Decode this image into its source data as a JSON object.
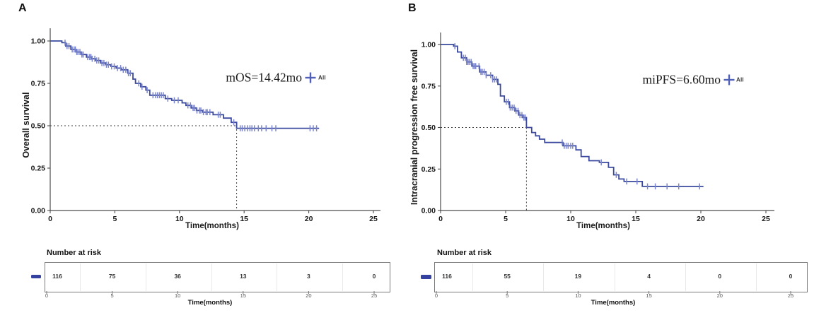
{
  "colors": {
    "line": "#3b4a9f",
    "censor": "#7b85cb",
    "axis": "#4d4d4d",
    "dashed_line": "#3f3f3f",
    "legend_plus": "#5261b8",
    "risk_marker": "#35419e",
    "risk_border": "#7a7a7a",
    "risk_grid": "#e9e9e9",
    "tick_text": "#1a1a1a",
    "muted_text": "#555555"
  },
  "chart_data": [
    {
      "type": "line",
      "subtype": "kaplan-meier-step",
      "panel": "A",
      "ylabel": "Overall survival",
      "xlabel": "Time(months)",
      "annotation": "mOS=14.42mo",
      "legend_label": "All",
      "legend_position": "inside-right of plot, next to annotation",
      "median_months": 14.42,
      "xlim": [
        0,
        25
      ],
      "ylim": [
        0.0,
        1.0
      ],
      "xticks": [
        0,
        5,
        10,
        15,
        20,
        25
      ],
      "yticks": [
        "0.00",
        "0.25",
        "0.50",
        "0.75",
        "1.00"
      ],
      "grid": false,
      "step_t": [
        0,
        0.9,
        1.2,
        1.6,
        2.0,
        2.4,
        2.8,
        3.2,
        3.5,
        3.9,
        4.3,
        4.7,
        5.1,
        5.5,
        6.0,
        6.4,
        6.6,
        7.0,
        7.4,
        7.7,
        8.9,
        9.4,
        10.2,
        10.5,
        10.9,
        11.3,
        11.8,
        12.6,
        13.4,
        14.0,
        14.42,
        20.8
      ],
      "step_s": [
        1.0,
        0.99,
        0.97,
        0.95,
        0.935,
        0.92,
        0.905,
        0.895,
        0.885,
        0.87,
        0.86,
        0.85,
        0.84,
        0.83,
        0.81,
        0.775,
        0.75,
        0.73,
        0.71,
        0.68,
        0.66,
        0.65,
        0.635,
        0.62,
        0.605,
        0.59,
        0.58,
        0.565,
        0.545,
        0.52,
        0.485,
        0.485
      ],
      "censor_t": [
        1.15,
        1.3,
        1.45,
        1.7,
        1.85,
        1.95,
        2.05,
        2.15,
        2.3,
        2.45,
        2.55,
        2.9,
        3.05,
        3.15,
        3.25,
        3.45,
        3.6,
        3.75,
        4.0,
        4.15,
        4.35,
        4.5,
        4.75,
        4.95,
        5.2,
        5.45,
        5.65,
        5.85,
        6.05,
        6.2,
        6.85,
        7.1,
        7.5,
        7.95,
        8.15,
        8.3,
        8.45,
        8.6,
        8.75,
        9.1,
        9.6,
        9.9,
        10.65,
        10.85,
        11.05,
        11.15,
        11.35,
        11.55,
        11.65,
        11.85,
        12.05,
        12.15,
        12.35,
        13.0,
        13.15,
        14.2,
        14.7,
        14.85,
        15.05,
        15.25,
        15.45,
        15.6,
        15.8,
        16.1,
        16.35,
        16.7,
        17.15,
        17.45,
        20.1,
        20.35,
        20.6
      ],
      "risk_table": {
        "title": "Number at risk",
        "xlabel": "Time(months)",
        "group": "All",
        "times": [
          0,
          5,
          10,
          15,
          20,
          25
        ],
        "counts": [
          116,
          75,
          36,
          13,
          3,
          0
        ]
      }
    },
    {
      "type": "line",
      "subtype": "kaplan-meier-step",
      "panel": "B",
      "ylabel": "Intracranial progression free survival",
      "xlabel": "Time(months)",
      "annotation": "miPFS=6.60mo",
      "legend_label": "All",
      "legend_position": "inside-right of plot, next to annotation",
      "median_months": 6.6,
      "xlim": [
        0,
        25
      ],
      "ylim": [
        0.0,
        1.0
      ],
      "xticks": [
        0,
        5,
        10,
        15,
        20,
        25
      ],
      "yticks": [
        "0.00",
        "0.25",
        "0.50",
        "0.75",
        "1.00"
      ],
      "grid": false,
      "step_t": [
        0,
        1.0,
        1.3,
        1.6,
        2.0,
        2.4,
        3.0,
        3.5,
        4.0,
        4.4,
        4.6,
        4.9,
        5.3,
        5.7,
        6.0,
        6.3,
        6.6,
        7.0,
        7.3,
        7.6,
        8.0,
        9.4,
        10.4,
        10.8,
        11.4,
        12.2,
        12.9,
        13.3,
        13.7,
        14.1,
        15.5,
        20.2
      ],
      "step_s": [
        1.0,
        0.99,
        0.955,
        0.92,
        0.895,
        0.87,
        0.835,
        0.815,
        0.79,
        0.76,
        0.69,
        0.655,
        0.62,
        0.6,
        0.575,
        0.56,
        0.5,
        0.47,
        0.45,
        0.43,
        0.41,
        0.39,
        0.365,
        0.325,
        0.3,
        0.29,
        0.26,
        0.215,
        0.19,
        0.175,
        0.145,
        0.145
      ],
      "censor_t": [
        1.1,
        1.75,
        1.9,
        2.0,
        2.1,
        2.2,
        2.35,
        2.5,
        2.6,
        2.7,
        2.95,
        3.1,
        3.2,
        3.35,
        3.5,
        3.85,
        4.0,
        4.15,
        4.3,
        5.05,
        5.2,
        5.35,
        5.5,
        5.65,
        5.8,
        5.95,
        6.1,
        6.25,
        6.4,
        6.5,
        9.35,
        9.5,
        9.65,
        9.8,
        10.0,
        10.15,
        12.35,
        13.5,
        14.3,
        15.1,
        15.9,
        16.5,
        17.4,
        18.3,
        19.9
      ],
      "risk_table": {
        "title": "Number at risk",
        "xlabel": "Time(months)",
        "group": "All",
        "times": [
          0,
          5,
          10,
          15,
          20,
          25
        ],
        "counts": [
          116,
          55,
          19,
          4,
          0,
          0
        ]
      }
    }
  ]
}
